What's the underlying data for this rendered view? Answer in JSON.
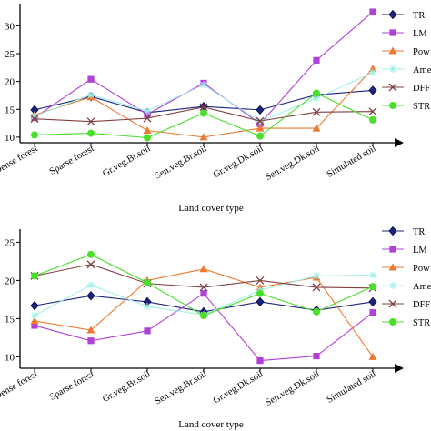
{
  "chart_data": [
    {
      "type": "line",
      "title": "",
      "xlabel": "Land cover type",
      "ylabel": "",
      "ylim": [
        9,
        33
      ],
      "yticks": [
        10,
        15,
        20,
        25,
        30
      ],
      "grid": false,
      "legend_position": "right",
      "categories": [
        "Dense forest",
        "Sparse forest",
        "Gr.veg.Br.soil",
        "Sen.veg.Br.soil",
        "Gr.veg.Dk.soil",
        "Sen.veg.Dk.soil",
        "Simulated soil"
      ],
      "series": [
        {
          "name": "TR",
          "color": "#1a237e",
          "marker": "diamond",
          "values": [
            14.9,
            17.3,
            14.4,
            15.5,
            14.9,
            17.6,
            18.4
          ]
        },
        {
          "name": "LM",
          "color": "#b040d8",
          "marker": "square",
          "values": [
            13.5,
            20.4,
            14.1,
            19.7,
            12.4,
            23.8,
            32.5
          ]
        },
        {
          "name": "Pow",
          "color": "#f07830",
          "marker": "triangle",
          "values": [
            14.0,
            17.2,
            11.2,
            10.0,
            11.6,
            11.6,
            22.3
          ]
        },
        {
          "name": "Ame",
          "color": "#a0f0e8",
          "marker": "star",
          "values": [
            13.8,
            17.6,
            14.7,
            19.4,
            12.8,
            17.0,
            21.6
          ]
        },
        {
          "name": "DFF",
          "color": "#804040",
          "marker": "x",
          "values": [
            13.3,
            12.8,
            13.4,
            15.4,
            12.9,
            14.5,
            14.6
          ]
        },
        {
          "name": "STR",
          "color": "#48e028",
          "marker": "circle",
          "values": [
            10.4,
            10.7,
            9.9,
            14.3,
            10.2,
            17.9,
            13.1
          ]
        }
      ]
    },
    {
      "type": "line",
      "title": "",
      "xlabel": "Land cover type",
      "ylabel": "",
      "ylim": [
        8.5,
        26
      ],
      "yticks": [
        10,
        15,
        20,
        25
      ],
      "grid": false,
      "legend_position": "right",
      "categories": [
        "Dense forest",
        "Sparse forest",
        "Gr.veg.Br.soil",
        "Sen.veg.Br.soil",
        "Gr.veg.Dk.soil",
        "Sen.veg.Dk.soil",
        "Simulated soil"
      ],
      "series": [
        {
          "name": "TR",
          "color": "#1a237e",
          "marker": "diamond",
          "values": [
            16.7,
            18.0,
            17.2,
            15.9,
            17.2,
            16.1,
            17.2
          ]
        },
        {
          "name": "LM",
          "color": "#b040d8",
          "marker": "square",
          "values": [
            14.1,
            12.1,
            13.4,
            18.3,
            9.5,
            10.1,
            15.8
          ]
        },
        {
          "name": "Pow",
          "color": "#f07830",
          "marker": "triangle",
          "values": [
            14.7,
            13.5,
            20.0,
            21.5,
            19.1,
            20.4,
            10.0
          ]
        },
        {
          "name": "Ame",
          "color": "#a0f0e8",
          "marker": "star",
          "values": [
            15.4,
            19.4,
            16.6,
            15.5,
            18.7,
            20.6,
            20.7
          ]
        },
        {
          "name": "DFF",
          "color": "#804040",
          "marker": "x",
          "values": [
            20.6,
            22.1,
            19.6,
            19.1,
            20.0,
            19.1,
            19.0
          ]
        },
        {
          "name": "STR",
          "color": "#48e028",
          "marker": "circle",
          "values": [
            20.6,
            23.4,
            19.7,
            15.4,
            18.3,
            15.9,
            19.2
          ]
        }
      ]
    }
  ]
}
